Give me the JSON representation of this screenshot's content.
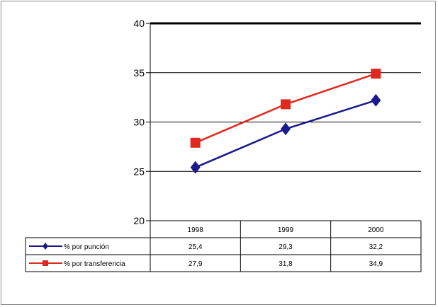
{
  "chart_data": {
    "type": "line",
    "categories": [
      "1998",
      "1999",
      "2000"
    ],
    "series": [
      {
        "name": "% por punción",
        "values": [
          25.4,
          29.3,
          32.2
        ],
        "value_labels": [
          "25,4",
          "29,3",
          "32,2"
        ],
        "color": "#1a1a8c",
        "marker": "diamond"
      },
      {
        "name": "% por transferencia",
        "values": [
          27.9,
          31.8,
          34.9
        ],
        "value_labels": [
          "27,9",
          "31,8",
          "34,9"
        ],
        "color": "#e0281e",
        "marker": "square"
      }
    ],
    "ylim": [
      20,
      40
    ],
    "yticks": [
      20,
      25,
      30,
      35,
      40
    ],
    "grid": true,
    "legend": "data-table",
    "title": "",
    "xlabel": "",
    "ylabel": ""
  }
}
